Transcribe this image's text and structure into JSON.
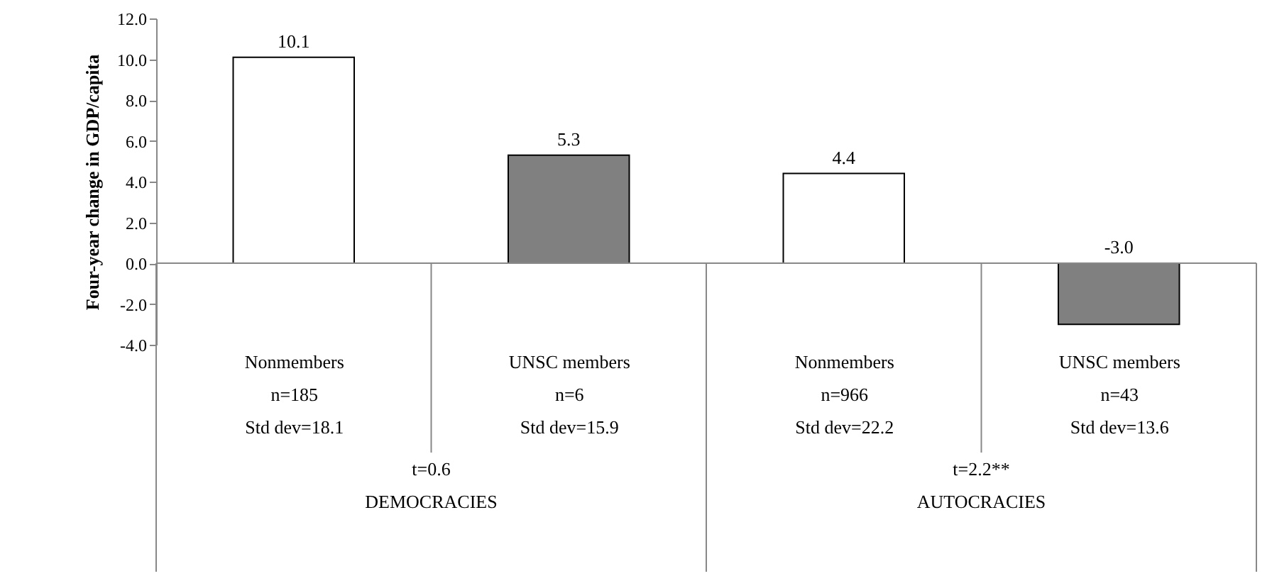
{
  "chart_data": {
    "type": "bar",
    "ylabel": "Four-year change in GDP/capita",
    "categories": [
      "Nonmembers\nn=185\nStd dev=18.1",
      "UNSC members\nn=6\nStd dev=15.9",
      "Nonmembers\nn=966\nStd dev=22.2",
      "UNSC members\nn=43\nStd dev=13.6"
    ],
    "values": [
      10.1,
      5.3,
      4.4,
      -3.0
    ],
    "colors": [
      "#ffffff",
      "#808080",
      "#ffffff",
      "#808080"
    ],
    "ylim": [
      -4,
      12
    ],
    "yticks": [
      {
        "value": -4,
        "label": "-4.0"
      },
      {
        "value": -2,
        "label": "-2.0"
      },
      {
        "value": 0,
        "label": "0.0"
      },
      {
        "value": 2,
        "label": "2.0"
      },
      {
        "value": 4,
        "label": "4.0"
      },
      {
        "value": 6,
        "label": "6.0"
      },
      {
        "value": 8,
        "label": "8.0"
      },
      {
        "value": 10,
        "label": "10.0"
      },
      {
        "value": 12,
        "label": "12.0"
      }
    ],
    "value_labels": [
      "10.1",
      "5.3",
      "4.4",
      "-3.0"
    ],
    "annotations": [
      "t=0.6",
      "DEMOCRACIES",
      "t=2.2**",
      "AUTOCRACIES"
    ]
  }
}
